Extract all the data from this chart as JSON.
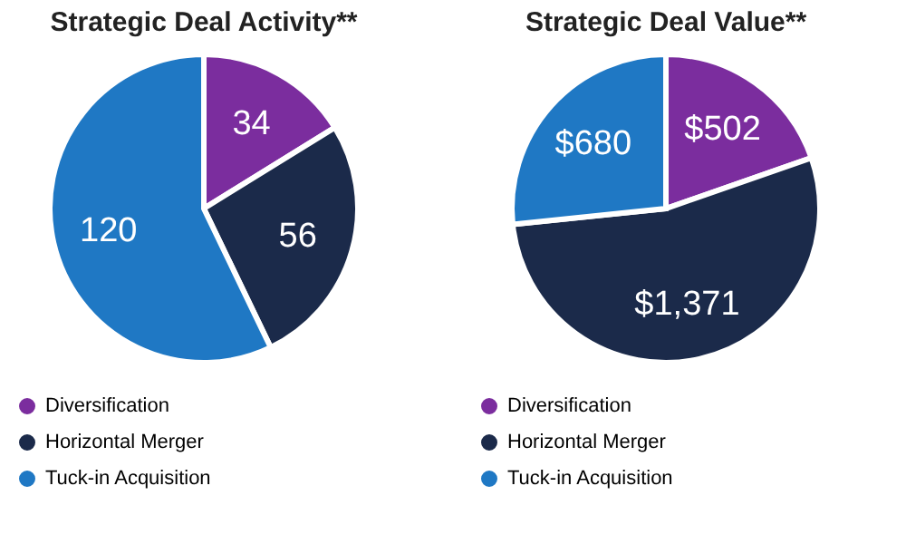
{
  "chart_data": [
    {
      "type": "pie",
      "title": "Strategic Deal Activity**",
      "categories": [
        "Diversification",
        "Horizontal Merger",
        "Tuck-in Acquisition"
      ],
      "values": [
        34,
        56,
        120
      ],
      "colors": [
        "#7b2d9e",
        "#1b2a4a",
        "#1f78c4"
      ],
      "data_labels": true,
      "legend": "bottom"
    },
    {
      "type": "pie",
      "title": "Strategic Deal Value**",
      "categories": [
        "Diversification",
        "Horizontal Merger",
        "Tuck-in Acquisition"
      ],
      "values": [
        502,
        1371,
        680
      ],
      "value_labels": [
        "$502",
        "$1,371",
        "$680"
      ],
      "colors": [
        "#7b2d9e",
        "#1b2a4a",
        "#1f78c4"
      ],
      "legend": "bottom"
    }
  ]
}
